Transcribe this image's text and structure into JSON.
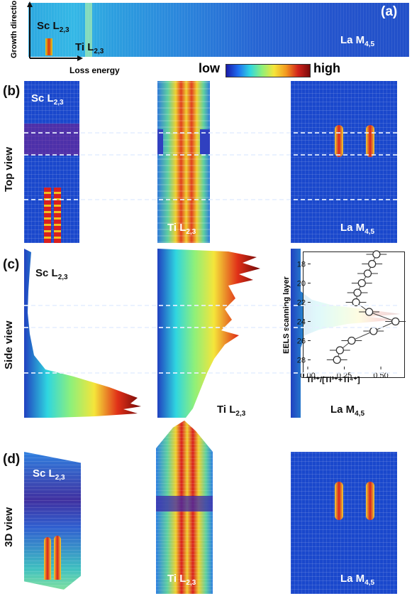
{
  "panel_a": {
    "letter": "(a)",
    "y_axis_label": "Growth direction",
    "x_axis_label": "Loss energy",
    "labels": {
      "sc": {
        "main": "Sc L",
        "sub": "2,3"
      },
      "ti": {
        "main": "Ti L",
        "sub": "2,3"
      },
      "la": {
        "main": "La M",
        "sub": "4,5"
      }
    }
  },
  "colorbar": {
    "low": "low",
    "high": "high",
    "colors": [
      "#1a1aa8",
      "#1e6ef0",
      "#2fd6e0",
      "#8ef07a",
      "#f5e53a",
      "#f39a1f",
      "#d2231b",
      "#7a0a0a"
    ]
  },
  "rows": {
    "b": {
      "letter": "(b)",
      "view": "Top view"
    },
    "c": {
      "letter": "(c)",
      "view": "Side view"
    },
    "d": {
      "letter": "(d)",
      "view": "3D view"
    }
  },
  "element_labels": {
    "sc": {
      "main": "Sc L",
      "sub": "2,3"
    },
    "ti": {
      "main": "Ti L",
      "sub": "2,3"
    },
    "la": {
      "main": "La M",
      "sub": "4,5"
    }
  },
  "chart_data": {
    "type": "scatter",
    "ylabel": "EELS scanning layer",
    "xlabel": "Ti³⁺/[Ti³⁺+Ti⁴⁺]",
    "y_ticks": [
      18,
      20,
      22,
      24,
      26,
      28
    ],
    "x_ticks": [
      "0.00",
      "0.25",
      "0.50"
    ],
    "xlim": [
      0.0,
      0.65
    ],
    "ylim": [
      17,
      29
    ],
    "y_reversed": true,
    "points": [
      {
        "layer": 17,
        "ratio": 0.47,
        "err": 0.07
      },
      {
        "layer": 18,
        "ratio": 0.44,
        "err": 0.07
      },
      {
        "layer": 19,
        "ratio": 0.41,
        "err": 0.07
      },
      {
        "layer": 20,
        "ratio": 0.37,
        "err": 0.07
      },
      {
        "layer": 21,
        "ratio": 0.34,
        "err": 0.07
      },
      {
        "layer": 22,
        "ratio": 0.33,
        "err": 0.07
      },
      {
        "layer": 23,
        "ratio": 0.42,
        "err": 0.07
      },
      {
        "layer": 24,
        "ratio": 0.6,
        "err": 0.07
      },
      {
        "layer": 25,
        "ratio": 0.45,
        "err": 0.07
      },
      {
        "layer": 26,
        "ratio": 0.3,
        "err": 0.07
      },
      {
        "layer": 27,
        "ratio": 0.22,
        "err": 0.07
      },
      {
        "layer": 28,
        "ratio": 0.2,
        "err": 0.07
      }
    ]
  }
}
